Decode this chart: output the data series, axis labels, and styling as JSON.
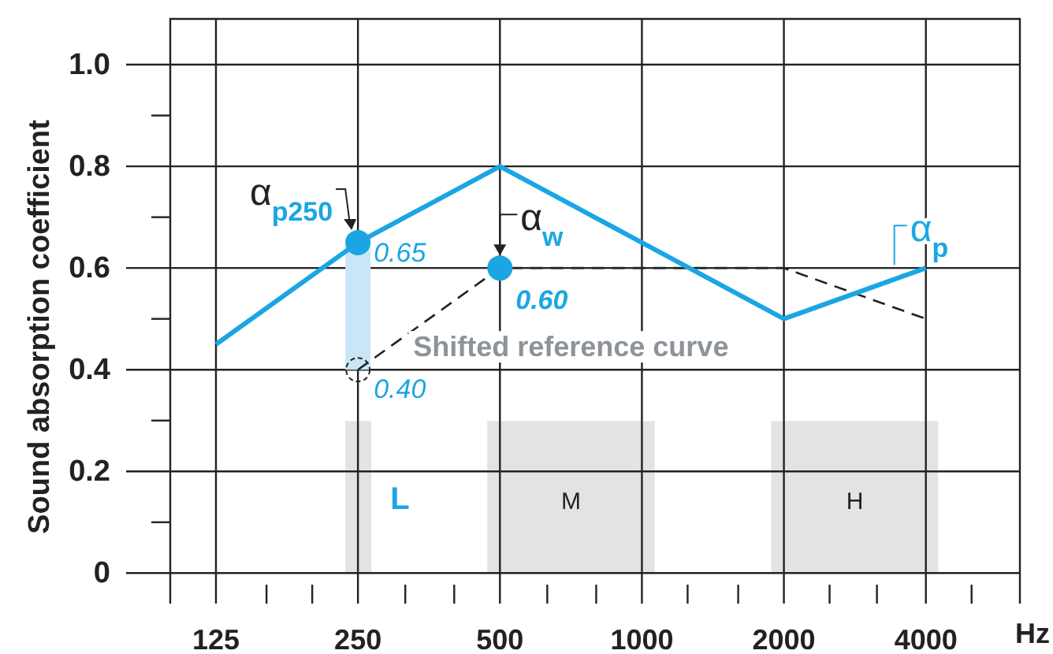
{
  "chart_data": {
    "type": "line",
    "ylabel": "Sound absorption coefficient",
    "xlabel": "Hz",
    "log": "x",
    "grid": true,
    "xlim": [
      100,
      6330
    ],
    "ylim": [
      -0.06,
      1.09
    ],
    "xticks": [
      125,
      {
        "value": 160,
        "label": null
      },
      {
        "value": 200,
        "label": null
      },
      250,
      {
        "value": 315,
        "label": null
      },
      {
        "value": 400,
        "label": null
      },
      500,
      {
        "value": 630,
        "label": null
      },
      {
        "value": 800,
        "label": null
      },
      1000,
      {
        "value": 1250,
        "label": null
      },
      {
        "value": 1600,
        "label": null
      },
      2000,
      {
        "value": 2500,
        "label": null
      },
      {
        "value": 3150,
        "label": null
      },
      4000,
      {
        "value": 5000,
        "label": null
      }
    ],
    "yticks": [
      0,
      {
        "value": 0.1,
        "label": null
      },
      0.2,
      {
        "value": 0.3,
        "label": null
      },
      0.4,
      {
        "value": 0.5,
        "label": null
      },
      0.6,
      {
        "value": 0.7,
        "label": null
      },
      0.8,
      {
        "value": 0.9,
        "label": null
      },
      {
        "value": 1,
        "label": "1.0"
      }
    ],
    "bands": [
      {
        "axis": "x",
        "from": 235,
        "to": 267,
        "label": "L",
        "color": "#e3e3e3"
      },
      {
        "axis": "x",
        "from": 470,
        "to": 1065,
        "label": "M",
        "color": "#e3e3e3"
      },
      {
        "axis": "x",
        "from": 1880,
        "to": 4250,
        "label": "H",
        "color": "#e3e3e3"
      }
    ],
    "series": [
      {
        "type": "bar",
        "x": [
          250
        ],
        "base": [
          0.4
        ],
        "values": [
          0.25
        ],
        "color": "#c9e5f8"
      },
      {
        "name": "Shifted reference curve",
        "x": [
          250,
          500,
          1000,
          2000,
          4000
        ],
        "values": [
          0.4,
          0.6,
          0.6,
          0.6,
          0.5
        ],
        "color": "#222222",
        "line_style": "dashed"
      },
      {
        "name": "α$_{p}$",
        "x": [
          125,
          250,
          500,
          1000,
          2000,
          4000
        ],
        "values": [
          0.45,
          0.65,
          0.8,
          0.65,
          0.5,
          0.6
        ],
        "color": "#1ba6e3",
        "line_style": "solid"
      },
      {
        "type": "scatter",
        "x": [
          250
        ],
        "values": [
          0.4
        ],
        "color": "#222222",
        "line_style": "dashed",
        "value_labels": [
          "0.40"
        ]
      },
      {
        "type": "scatter",
        "x": [
          250
        ],
        "values": [
          0.65
        ],
        "color": "#1ba6e3",
        "value_labels": [
          "0.65"
        ]
      },
      {
        "type": "scatter",
        "x": [
          500
        ],
        "values": [
          0.6
        ],
        "color": "#1ba6e3",
        "value_labels": [
          "0.60"
        ]
      }
    ],
    "annotations": [
      {
        "text": "α$_{p250}$",
        "x": 250,
        "y": 0.65
      },
      {
        "text": "α$_{w}$",
        "x": 500,
        "y": 0.6
      }
    ]
  }
}
